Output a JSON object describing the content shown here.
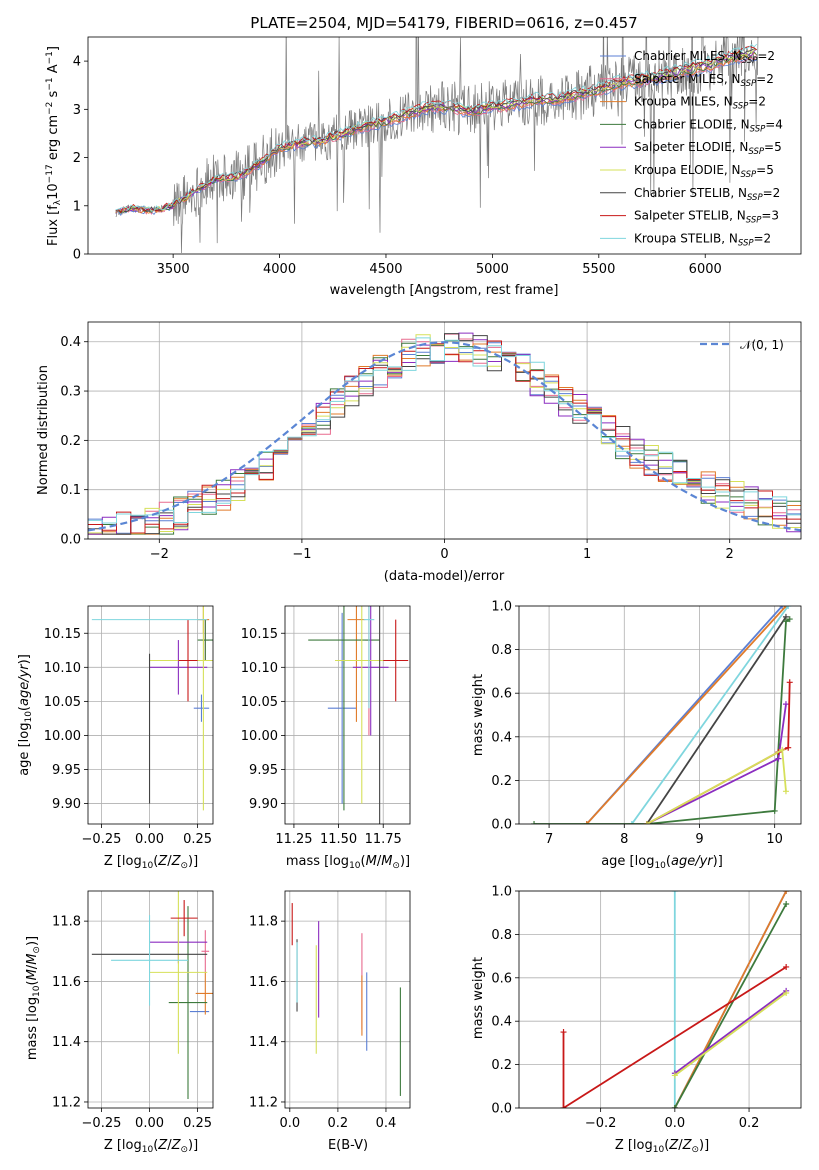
{
  "colors": {
    "Chabrier MILES": "#5b7fd4",
    "Salpeter MILES": "#e86a8e",
    "Kroupa MILES": "#e07b2a",
    "Chabrier ELODIE": "#3d7a3d",
    "Salpeter ELODIE": "#8b2dc0",
    "Kroupa ELODIE": "#d6e05a",
    "Chabrier STELIB": "#444444",
    "Salpeter STELIB": "#c81818",
    "Kroupa STELIB": "#7fd6de",
    "data": "#7a7a7a",
    "normal": "#5b86d4",
    "grid": "#b0b0b0"
  },
  "chart_data": [
    {
      "id": "spectrum",
      "type": "line",
      "title": "PLATE=2504, MJD=54179, FIBERID=0616, z=0.457",
      "xlabel": "wavelength [Angstrom, rest frame]",
      "ylabel": "Flux [f_λ 10^-17 erg cm^-2 s^-1 A^-1]",
      "xlim": [
        3100,
        6450
      ],
      "ylim": [
        0,
        4.5
      ],
      "xticks": [
        "3500",
        "4000",
        "4500",
        "5000",
        "5500",
        "6000"
      ],
      "yticks": [
        "0",
        "1",
        "2",
        "3",
        "4"
      ],
      "grid": false,
      "legend_position": "top-right",
      "legend": [
        {
          "model": "Chabrier MILES",
          "n": "2"
        },
        {
          "model": "Salpeter MILES",
          "n": "2"
        },
        {
          "model": "Kroupa MILES",
          "n": "2"
        },
        {
          "model": "Chabrier ELODIE",
          "n": "4"
        },
        {
          "model": "Salpeter ELODIE",
          "n": "5"
        },
        {
          "model": "Kroupa ELODIE",
          "n": "5"
        },
        {
          "model": "Chabrier STELIB",
          "n": "2"
        },
        {
          "model": "Salpeter STELIB",
          "n": "3"
        },
        {
          "model": "Kroupa STELIB",
          "n": "2"
        }
      ],
      "continuum": {
        "x": [
          3230,
          3300,
          3400,
          3500,
          3600,
          3700,
          3800,
          3900,
          4000,
          4100,
          4200,
          4300,
          4400,
          4500,
          4600,
          4700,
          4800,
          4900,
          5000,
          5100,
          5200,
          5300,
          5400,
          5500,
          5600,
          5700,
          5800,
          5900,
          6000,
          6100,
          6200,
          6250
        ],
        "y": [
          0.85,
          0.95,
          0.9,
          1.0,
          1.3,
          1.55,
          1.6,
          1.85,
          2.2,
          2.3,
          2.35,
          2.5,
          2.65,
          2.75,
          2.9,
          3.05,
          3.05,
          2.95,
          3.05,
          3.1,
          3.2,
          3.2,
          3.3,
          3.4,
          3.55,
          3.6,
          3.7,
          3.8,
          3.9,
          4.05,
          4.15,
          4.2
        ]
      }
    },
    {
      "id": "residuals",
      "type": "histogram",
      "xlabel": "(data-model)/error",
      "ylabel": "Normed distribution",
      "xlim": [
        -2.5,
        2.5
      ],
      "ylim": [
        0,
        0.44
      ],
      "xticks": [
        "−2",
        "−1",
        "0",
        "1",
        "2"
      ],
      "yticks": [
        "0.0",
        "0.1",
        "0.2",
        "0.3",
        "0.4"
      ],
      "grid": true,
      "legend_position": "top-right",
      "normal_label": "𝒩(0, 1)",
      "bin_width": 0.1
    },
    {
      "id": "age_vs_Z",
      "type": "scatter",
      "xlabel": "Z [log10(Z/Z⊙)]",
      "ylabel": "age  [log10(age/yr)]",
      "xlim": [
        -0.32,
        0.33
      ],
      "ylim": [
        9.87,
        10.19
      ],
      "xticks": [
        "−0.25",
        "0.00",
        "0.25"
      ],
      "yticks": [
        "9.90",
        "9.95",
        "10.00",
        "10.05",
        "10.10",
        "10.15"
      ],
      "grid": true,
      "points": [
        {
          "series": "Chabrier MILES",
          "x": 0.27,
          "xerr": 0.04,
          "y": 10.04,
          "yerr": 0.02
        },
        {
          "series": "Salpeter MILES",
          "x": 0.29,
          "xerr": 0.02,
          "y": 10.14,
          "yerr": 0.03
        },
        {
          "series": "Kroupa MILES",
          "x": 0.28,
          "xerr": 0.03,
          "y": 10.17,
          "yerr": 0.02
        },
        {
          "series": "Chabrier ELODIE",
          "x": 0.29,
          "xerr": 0.04,
          "y": 10.14,
          "yerr": 0.03
        },
        {
          "series": "Salpeter ELODIE",
          "x": 0.15,
          "xerr": 0.15,
          "y": 10.1,
          "yerr": 0.04
        },
        {
          "series": "Kroupa ELODIE",
          "x": 0.28,
          "xerr": 0.28,
          "y": 10.11,
          "yerr": 0.22
        },
        {
          "series": "Chabrier STELIB",
          "x": 0.0,
          "xerr": 0.0,
          "y": 10.01,
          "yerr": 0.11
        },
        {
          "series": "Salpeter STELIB",
          "x": 0.2,
          "xerr": 0.05,
          "y": 10.11,
          "yerr": 0.06
        },
        {
          "series": "Kroupa STELIB",
          "x": 0.0,
          "xerr": 0.3,
          "y": 10.17,
          "yerr": 0.0
        }
      ]
    },
    {
      "id": "age_vs_mass",
      "type": "scatter",
      "xlabel": "mass [log10(M/M⊙)]",
      "ylabel": "",
      "xlim": [
        11.2,
        11.9
      ],
      "ylim": [
        9.87,
        10.19
      ],
      "xticks": [
        "11.25",
        "11.50",
        "11.75"
      ],
      "yticks": [
        "9.90",
        "9.95",
        "10.00",
        "10.05",
        "10.10",
        "10.15"
      ],
      "grid": true,
      "points": [
        {
          "series": "Chabrier MILES",
          "x": 11.52,
          "xerr": 0.08,
          "y": 10.04,
          "yerr": 0.14
        },
        {
          "series": "Salpeter MILES",
          "x": 11.67,
          "xerr": 0.02,
          "y": 10.14,
          "yerr": 0.14
        },
        {
          "series": "Kroupa MILES",
          "x": 11.6,
          "xerr": 0.05,
          "y": 10.17,
          "yerr": 0.15
        },
        {
          "series": "Chabrier ELODIE",
          "x": 11.53,
          "xerr": 0.2,
          "y": 10.14,
          "yerr": 0.25
        },
        {
          "series": "Salpeter ELODIE",
          "x": 11.68,
          "xerr": 0.1,
          "y": 10.1,
          "yerr": 0.1
        },
        {
          "series": "Kroupa ELODIE",
          "x": 11.63,
          "xerr": 0.15,
          "y": 10.11,
          "yerr": 0.21
        },
        {
          "series": "Chabrier STELIB",
          "x": 11.73,
          "xerr": 0.0,
          "y": 10.01,
          "yerr": 0.2
        },
        {
          "series": "Salpeter STELIB",
          "x": 11.82,
          "xerr": 0.07,
          "y": 10.11,
          "yerr": 0.06
        },
        {
          "series": "Kroupa STELIB",
          "x": 11.67,
          "xerr": 0.03,
          "y": 10.17,
          "yerr": 0.13
        }
      ]
    },
    {
      "id": "weight_vs_age",
      "type": "line",
      "xlabel": "age  [log10(age/yr)]",
      "ylabel": "mass weight",
      "xlim": [
        6.6,
        10.35
      ],
      "ylim": [
        0,
        1
      ],
      "xticks": [
        "7",
        "8",
        "9",
        "10"
      ],
      "yticks": [
        "0.0",
        "0.2",
        "0.4",
        "0.6",
        "0.8",
        "1.0"
      ],
      "grid": true,
      "series": [
        {
          "name": "Chabrier MILES",
          "x": [
            7.5,
            10.1
          ],
          "y": [
            0,
            1
          ]
        },
        {
          "name": "Kroupa MILES",
          "x": [
            7.5,
            10.15
          ],
          "y": [
            0,
            1
          ]
        },
        {
          "name": "Kroupa STELIB",
          "x": [
            8.1,
            10.18
          ],
          "y": [
            0,
            1
          ]
        },
        {
          "name": "Chabrier STELIB",
          "x": [
            8.3,
            10.15
          ],
          "y": [
            0,
            0.95
          ]
        },
        {
          "name": "Chabrier ELODIE",
          "x": [
            6.8,
            8.3,
            10.0,
            10.15,
            10.2
          ],
          "y": [
            0,
            0,
            0.06,
            0.93,
            0.94
          ]
        },
        {
          "name": "Salpeter ELODIE",
          "x": [
            8.3,
            10.05,
            10.15
          ],
          "y": [
            0,
            0.3,
            0.55
          ]
        },
        {
          "name": "Salpeter STELIB",
          "x": [
            8.3,
            10.05,
            10.18,
            10.2
          ],
          "y": [
            0,
            0.33,
            0.35,
            0.65
          ]
        },
        {
          "name": "Kroupa ELODIE",
          "x": [
            8.3,
            10.1,
            10.15
          ],
          "y": [
            0,
            0.34,
            0.15
          ]
        }
      ]
    },
    {
      "id": "mass_vs_Z",
      "type": "scatter",
      "xlabel": "Z [log10(Z/Z⊙)]",
      "ylabel": "mass [log10(M/M⊙)]",
      "xlim": [
        -0.32,
        0.33
      ],
      "ylim": [
        11.18,
        11.9
      ],
      "xticks": [
        "−0.25",
        "0.00",
        "0.25"
      ],
      "yticks": [
        "11.2",
        "11.4",
        "11.6",
        "11.8"
      ],
      "grid": true,
      "points": [
        {
          "series": "Chabrier MILES",
          "x": 0.26,
          "xerr": 0.05,
          "y": 11.5,
          "yerr": 0.0
        },
        {
          "series": "Salpeter MILES",
          "x": 0.29,
          "xerr": 0.02,
          "y": 11.7,
          "yerr": 0.07
        },
        {
          "series": "Kroupa MILES",
          "x": 0.29,
          "xerr": 0.05,
          "y": 11.56,
          "yerr": 0.07
        },
        {
          "series": "Chabrier ELODIE",
          "x": 0.2,
          "xerr": 0.1,
          "y": 11.53,
          "yerr": 0.32
        },
        {
          "series": "Salpeter ELODIE",
          "x": 0.15,
          "xerr": 0.15,
          "y": 11.73,
          "yerr": 0.07
        },
        {
          "series": "Kroupa ELODIE",
          "x": 0.15,
          "xerr": 0.15,
          "y": 11.63,
          "yerr": 0.27
        },
        {
          "series": "Chabrier STELIB",
          "x": 0.0,
          "xerr": 0.3,
          "y": 11.69,
          "yerr": 0.0
        },
        {
          "series": "Salpeter STELIB",
          "x": 0.18,
          "xerr": 0.07,
          "y": 11.81,
          "yerr": 0.06
        },
        {
          "series": "Kroupa STELIB",
          "x": 0.0,
          "xerr": 0.2,
          "y": 11.67,
          "yerr": 0.15
        }
      ]
    },
    {
      "id": "mass_vs_EBV",
      "type": "scatter",
      "xlabel": "E(B-V)",
      "ylabel": "",
      "xlim": [
        -0.02,
        0.5
      ],
      "ylim": [
        11.18,
        11.9
      ],
      "xticks": [
        "0.0",
        "0.2",
        "0.4"
      ],
      "yticks": [
        "11.2",
        "11.4",
        "11.6",
        "11.8"
      ],
      "grid": true,
      "points": [
        {
          "series": "Chabrier MILES",
          "x": 0.32,
          "xerr": 0.0,
          "y": 11.5,
          "yerr": 0.13
        },
        {
          "series": "Salpeter MILES",
          "x": 0.3,
          "xerr": 0.0,
          "y": 11.6,
          "yerr": 0.16
        },
        {
          "series": "Kroupa MILES",
          "x": 0.3,
          "xerr": 0.0,
          "y": 11.52,
          "yerr": 0.1
        },
        {
          "series": "Chabrier ELODIE",
          "x": 0.46,
          "xerr": 0.0,
          "y": 11.4,
          "yerr": 0.18
        },
        {
          "series": "Salpeter ELODIE",
          "x": 0.12,
          "xerr": 0.0,
          "y": 11.64,
          "yerr": 0.16
        },
        {
          "series": "Kroupa ELODIE",
          "x": 0.11,
          "xerr": 0.0,
          "y": 11.54,
          "yerr": 0.18
        },
        {
          "series": "Chabrier STELIB",
          "x": 0.03,
          "xerr": 0.0,
          "y": 11.62,
          "yerr": 0.12
        },
        {
          "series": "Salpeter STELIB",
          "x": 0.01,
          "xerr": 0.0,
          "y": 11.79,
          "yerr": 0.07
        },
        {
          "series": "Kroupa STELIB",
          "x": 0.03,
          "xerr": 0.0,
          "y": 11.63,
          "yerr": 0.1
        }
      ]
    },
    {
      "id": "weight_vs_Z",
      "type": "line",
      "xlabel": "Z [log10(Z/Z⊙)]",
      "ylabel": "mass weight",
      "xlim": [
        -0.42,
        0.34
      ],
      "ylim": [
        0,
        1
      ],
      "xticks": [
        "−0.2",
        "0.0",
        "0.2"
      ],
      "yticks": [
        "0.0",
        "0.2",
        "0.4",
        "0.6",
        "0.8",
        "1.0"
      ],
      "grid": true,
      "series": [
        {
          "name": "Kroupa STELIB",
          "x": [
            0.0,
            0.0
          ],
          "y": [
            0,
            1
          ]
        },
        {
          "name": "Chabrier MILES",
          "x": [
            0.0,
            0.3
          ],
          "y": [
            0,
            1
          ]
        },
        {
          "name": "Kroupa MILES",
          "x": [
            0.0,
            0.3
          ],
          "y": [
            0,
            1
          ]
        },
        {
          "name": "Chabrier ELODIE",
          "x": [
            0.0,
            0.3
          ],
          "y": [
            0,
            0.94
          ]
        },
        {
          "name": "Salpeter ELODIE",
          "x": [
            0.0,
            0.3
          ],
          "y": [
            0.16,
            0.54
          ]
        },
        {
          "name": "Kroupa ELODIE",
          "x": [
            0.0,
            0.3
          ],
          "y": [
            0.15,
            0.53
          ]
        },
        {
          "name": "Salpeter STELIB",
          "x": [
            -0.3,
            -0.3,
            0.3
          ],
          "y": [
            0.35,
            0,
            0.65
          ]
        }
      ]
    }
  ]
}
